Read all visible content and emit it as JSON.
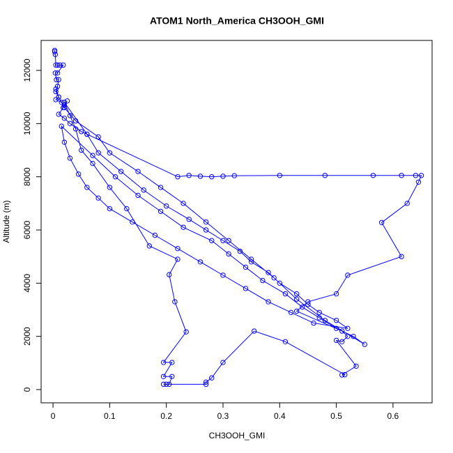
{
  "chart_data": {
    "type": "line",
    "title": "ATOM1 North_America CH3OOH_GMI",
    "x_label": "CH3OOH_GMI",
    "y_label": "Altitude (m)",
    "color": "#0000ff",
    "xlim": [
      -0.021,
      0.669
    ],
    "ylim": [
      -498,
      13126
    ],
    "xticks": [
      0.0,
      0.1,
      0.2,
      0.3,
      0.4,
      0.5,
      0.6
    ],
    "yticks": [
      0,
      2000,
      4000,
      6000,
      8000,
      10000,
      12000
    ],
    "x": [
      0.003,
      0.003,
      0.004,
      0.005,
      0.008,
      0.012,
      0.018,
      0.008,
      0.004,
      0.006,
      0.01,
      0.008,
      0.005,
      0.01,
      0.005,
      0.015,
      0.02,
      0.025,
      0.018,
      0.01,
      0.02,
      0.03,
      0.05,
      0.06,
      0.22,
      0.24,
      0.26,
      0.28,
      0.3,
      0.32,
      0.4,
      0.48,
      0.565,
      0.615,
      0.64,
      0.65,
      0.645,
      0.625,
      0.58,
      0.615,
      0.52,
      0.5,
      0.45,
      0.43,
      0.51,
      0.52,
      0.51,
      0.5,
      0.535,
      0.51,
      0.515,
      0.41,
      0.355,
      0.3,
      0.28,
      0.27,
      0.27,
      0.195,
      0.2,
      0.205,
      0.21,
      0.195,
      0.21,
      0.195,
      0.235,
      0.215,
      0.205,
      0.22,
      0.17,
      0.13,
      0.1,
      0.07,
      0.05,
      0.04,
      0.03,
      0.02,
      0.06,
      0.08,
      0.12,
      0.16,
      0.2,
      0.24,
      0.27,
      0.3,
      0.33,
      0.35,
      0.38,
      0.4,
      0.43,
      0.45,
      0.47,
      0.5,
      0.52,
      0.46,
      0.42,
      0.38,
      0.34,
      0.3,
      0.26,
      0.22,
      0.18,
      0.14,
      0.1,
      0.08,
      0.06,
      0.045,
      0.03,
      0.02,
      0.015,
      0.07,
      0.11,
      0.15,
      0.19,
      0.23,
      0.28,
      0.31,
      0.34,
      0.37,
      0.41,
      0.44,
      0.47,
      0.5,
      0.53,
      0.55,
      0.48,
      0.43,
      0.39,
      0.35,
      0.31,
      0.27,
      0.23,
      0.19,
      0.15,
      0.1,
      0.08,
      0.04,
      0.02,
      0.01,
      0.005
    ],
    "values": [
      12750,
      12700,
      12600,
      12200,
      12200,
      12200,
      12200,
      11900,
      11900,
      11650,
      11650,
      11400,
      11200,
      11000,
      10900,
      10800,
      10700,
      10850,
      10600,
      10350,
      10200,
      10000,
      9700,
      9600,
      8000,
      8050,
      8020,
      8000,
      8020,
      8040,
      8050,
      8050,
      8050,
      8050,
      8050,
      8050,
      7800,
      7000,
      6280,
      5000,
      4300,
      3600,
      3300,
      2950,
      2200,
      2000,
      1800,
      1850,
      880,
      550,
      560,
      1800,
      2200,
      1020,
      440,
      280,
      200,
      200,
      200,
      200,
      490,
      490,
      1020,
      1020,
      2170,
      3300,
      4320,
      4900,
      5400,
      6800,
      7600,
      8500,
      9000,
      9800,
      10300,
      10800,
      9600,
      8900,
      8200,
      7500,
      6900,
      6400,
      6000,
      5600,
      5200,
      4800,
      4400,
      4000,
      3600,
      3200,
      2900,
      2600,
      2300,
      2500,
      2900,
      3300,
      3800,
      4300,
      4800,
      5300,
      5800,
      6300,
      6800,
      7200,
      7600,
      8100,
      8700,
      9300,
      9900,
      8800,
      8000,
      7300,
      6700,
      6100,
      5600,
      5100,
      4600,
      4100,
      3600,
      3100,
      2700,
      2300,
      2000,
      1700,
      2600,
      3400,
      4200,
      4900,
      5600,
      6300,
      7000,
      7600,
      8200,
      8900,
      9500,
      10100,
      10600,
      11000,
      11300
    ]
  }
}
